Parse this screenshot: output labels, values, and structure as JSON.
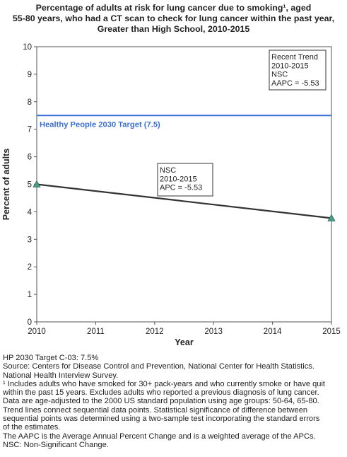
{
  "title_lines": [
    "Percentage of adults at risk for lung cancer due to smoking¹, aged",
    "55-80 years, who had a CT scan to check for lung cancer within the past year,",
    "Greater than High School,  2010-2015"
  ],
  "chart_data": {
    "type": "line",
    "xlabel": "Year",
    "ylabel": "Percent of adults",
    "xlim": [
      2010,
      2015
    ],
    "ylim": [
      0,
      10
    ],
    "x_ticks": [
      2010,
      2011,
      2012,
      2013,
      2014,
      2015
    ],
    "y_ticks": [
      0,
      1,
      2,
      3,
      4,
      5,
      6,
      7,
      8,
      9,
      10
    ],
    "grid": false,
    "series": [
      {
        "x": [
          2010,
          2015
        ],
        "values": [
          5.0,
          3.77
        ],
        "color": "#333333",
        "marker": "triangle",
        "marker_color": "#4a9a86"
      }
    ],
    "target": {
      "value": 7.5,
      "label": "Healthy People 2030 Target (7.5)",
      "color": "#3a6fd8"
    },
    "annotations": [
      {
        "lines": [
          "Recent Trend",
          "2010-2015",
          "NSC",
          "AAPC = -5.53"
        ],
        "position": "top-right"
      },
      {
        "lines": [
          "NSC",
          "2010-2015",
          "APC = -5.53"
        ],
        "position": "above-line"
      }
    ]
  },
  "notes": [
    "HP 2030 Target C-03: 7.5%",
    "Source: Centers for Disease Control and Prevention, National Center for Health Statistics.",
    "National Health Interview Survey.",
    "¹ Includes adults who have smoked for 30+ pack-years and who currently smoke or have quit",
    "within the past 15 years. Excludes adults who reported a previous diagnosis of lung cancer.",
    "Data are age-adjusted to the 2000 US standard population using age groups: 50-64, 65-80.",
    "Trend lines connect sequential data points. Statistical significance of difference between",
    "sequential points was determined using a two-sample test incorporating the standard errors",
    "of the estimates.",
    "The AAPC is the Average Annual Percent Change and is a weighted average of the APCs.",
    "NSC: Non-Significant Change."
  ]
}
